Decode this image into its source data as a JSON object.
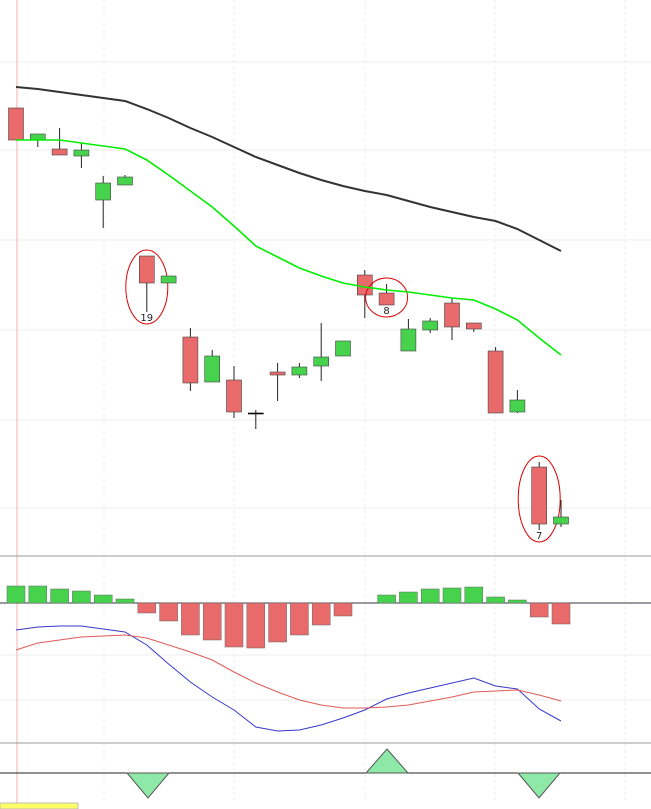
{
  "chart_data": [
    {
      "type": "candlestick",
      "ylim": [
        44,
        600
      ],
      "open": [
        492,
        460,
        451,
        444,
        400,
        415,
        344,
        317,
        263,
        218,
        220,
        187,
        228,
        225,
        234,
        244,
        325,
        307,
        249,
        270,
        297,
        277,
        249,
        188,
        133,
        76
      ],
      "high": [
        492,
        466,
        472,
        457,
        424,
        425,
        344,
        324,
        272,
        250,
        234,
        190,
        237,
        237,
        277,
        259,
        330,
        316,
        281,
        282,
        302,
        277,
        253,
        210,
        138,
        100
      ],
      "low": [
        460,
        453,
        445,
        432,
        372,
        415,
        288,
        317,
        209,
        218,
        182,
        171,
        199,
        222,
        219,
        244,
        282,
        295,
        249,
        267,
        260,
        268,
        187,
        187,
        70,
        73
      ],
      "close": [
        460,
        466,
        445,
        450,
        417,
        423,
        317,
        324,
        217,
        244,
        188,
        187,
        225,
        233,
        243,
        259,
        305,
        295,
        271,
        279,
        273,
        271,
        187,
        200,
        76,
        83
      ],
      "up_color": "#46d24c",
      "down_color": "#e86a6a",
      "candle_labels": [
        null,
        null,
        null,
        null,
        null,
        null,
        "19",
        null,
        null,
        null,
        null,
        null,
        null,
        null,
        null,
        null,
        null,
        "8",
        null,
        null,
        null,
        null,
        null,
        null,
        "7",
        null
      ],
      "series": [
        {
          "color": "#333333",
          "values": [
            513,
            511,
            508,
            505,
            502,
            499,
            491,
            482,
            472,
            463,
            453,
            443,
            435,
            427,
            420,
            414,
            409,
            405,
            399,
            393,
            388,
            383,
            379,
            371,
            360,
            349
          ]
        },
        {
          "color": "#00ee00",
          "values": [
            460,
            460,
            460,
            457,
            454,
            451,
            440,
            425,
            409,
            393,
            374,
            354,
            343,
            332,
            324,
            317,
            313,
            310,
            308,
            305,
            302,
            300,
            291,
            280,
            262,
            245
          ]
        }
      ]
    },
    {
      "type": "macd",
      "ylim": [
        -140,
        47
      ],
      "values": [
        17,
        17,
        14,
        12,
        8,
        4,
        -10,
        -18,
        -32,
        -37,
        -44,
        -45,
        -39,
        -32,
        -22,
        -13,
        0,
        8,
        11,
        14,
        15,
        16,
        6,
        3,
        -14,
        -21
      ],
      "up_color": "#46d24c",
      "down_color": "#e86a6a",
      "series": [
        {
          "color": "#3838cc",
          "values": [
            -27,
            -24,
            -23,
            -23,
            -26,
            -29,
            -42,
            -61,
            -79,
            -94,
            -107,
            -124,
            -128,
            -127,
            -122,
            -115,
            -107,
            -96,
            -90,
            -85,
            -80,
            -75,
            -83,
            -86,
            -106,
            -118
          ]
        },
        {
          "color": "#e05a5a",
          "values": [
            -47,
            -40,
            -37,
            -34,
            -33,
            -32,
            -35,
            -42,
            -49,
            -57,
            -69,
            -80,
            -89,
            -97,
            -102,
            -105,
            -105,
            -104,
            -102,
            -98,
            -94,
            -89,
            -88,
            -87,
            -92,
            -98
          ]
        }
      ]
    }
  ]
}
